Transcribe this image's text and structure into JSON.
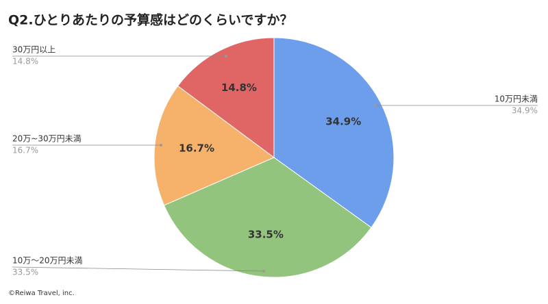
{
  "chart_data": {
    "type": "pie",
    "title": "Q2.ひとりあたりの予算感はどのくらいですか？",
    "categories": [
      "10万円未満",
      "10万〜20万円未満",
      "20万~30万円未満",
      "30万円以上"
    ],
    "values": [
      34.9,
      33.5,
      16.7,
      14.8
    ],
    "value_labels": [
      "34.9%",
      "33.5%",
      "16.7%",
      "14.8%"
    ],
    "colors": [
      "#6d9eeb",
      "#93c47d",
      "#f6b26b",
      "#e06666"
    ],
    "footer": "©Reiwa Travel, inc."
  }
}
